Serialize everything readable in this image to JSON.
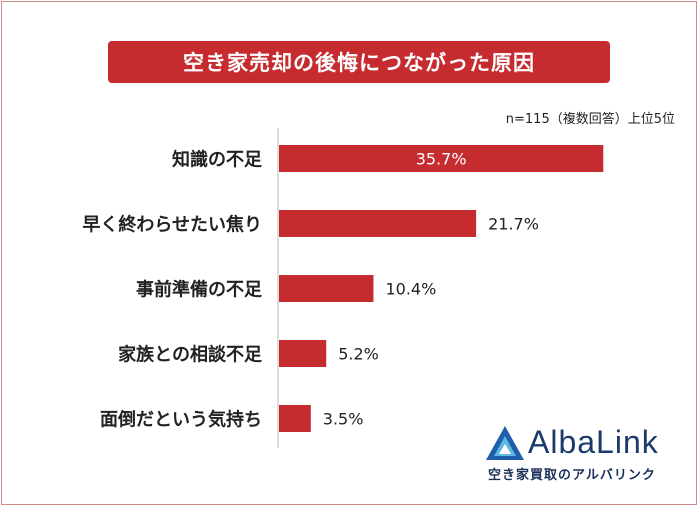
{
  "title": "空き家売却の後悔につながった原因",
  "note": "n=115（複数回答）上位5位",
  "colors": {
    "bar": "#c62c2f",
    "banner": "#c62c2f",
    "axis": "#bbbbbb"
  },
  "logo": {
    "brand": "AlbaLink",
    "tagline": "空き家買取のアルバリンク"
  },
  "chart_data": {
    "type": "bar",
    "orientation": "horizontal",
    "categories": [
      "知識の不足",
      "早く終わらせたい焦り",
      "事前準備の不足",
      "家族との相談不足",
      "面倒だという気持ち"
    ],
    "values": [
      35.7,
      21.7,
      10.4,
      5.2,
      3.5
    ],
    "value_labels": [
      "35.7%",
      "21.7%",
      "10.4%",
      "5.2%",
      "3.5%"
    ],
    "unit": "%",
    "xlim": [
      0,
      36
    ]
  }
}
